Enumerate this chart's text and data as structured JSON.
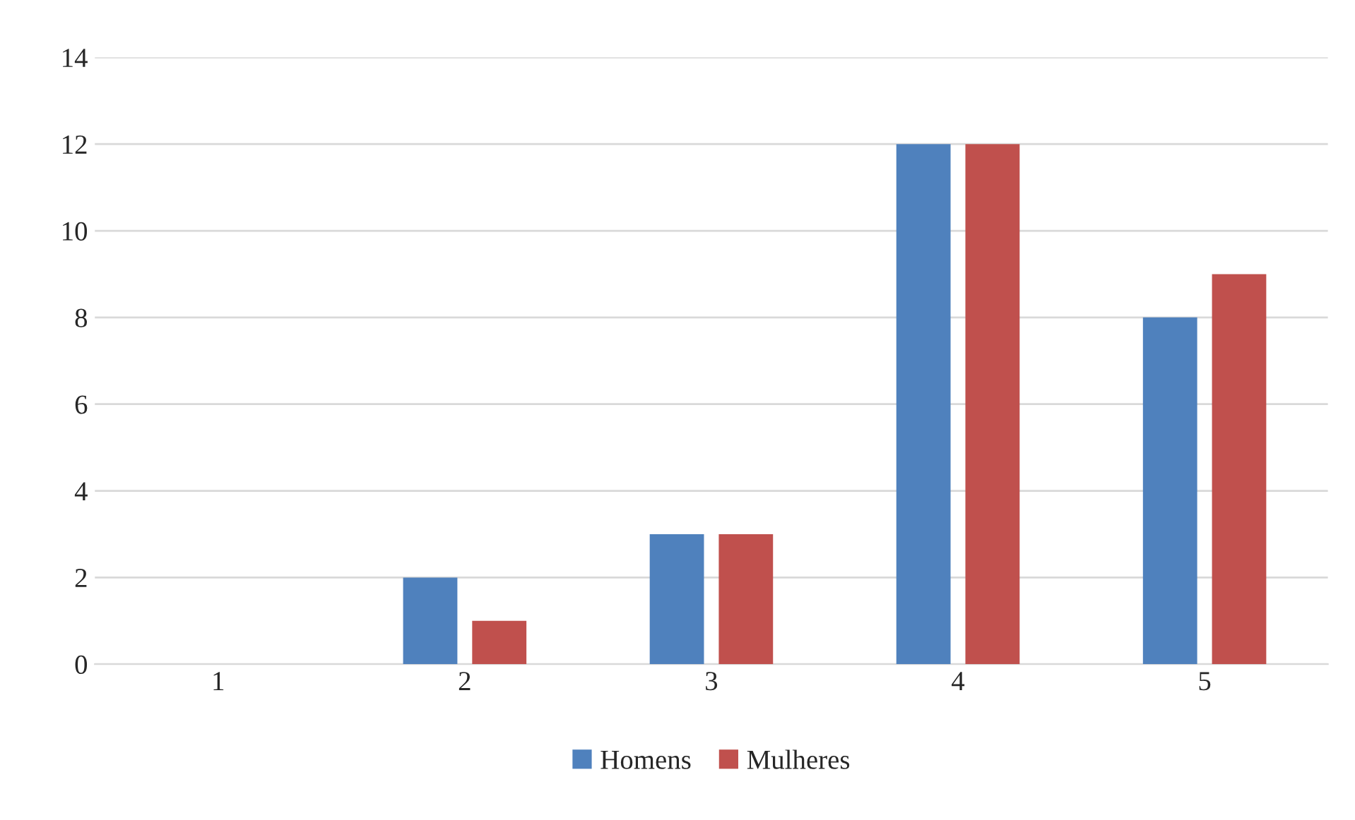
{
  "chart_data": {
    "type": "bar",
    "categories": [
      "1",
      "2",
      "3",
      "4",
      "5"
    ],
    "series": [
      {
        "name": "Homens",
        "color": "#4f81bd",
        "values": [
          0,
          2,
          3,
          12,
          8
        ]
      },
      {
        "name": "Mulheres",
        "color": "#c0504d",
        "values": [
          0,
          1,
          3,
          12,
          9
        ]
      }
    ],
    "ylim": [
      0,
      14
    ],
    "yticks": [
      0,
      2,
      4,
      6,
      8,
      10,
      12,
      14
    ],
    "grid": "y",
    "legend": "bottom"
  }
}
